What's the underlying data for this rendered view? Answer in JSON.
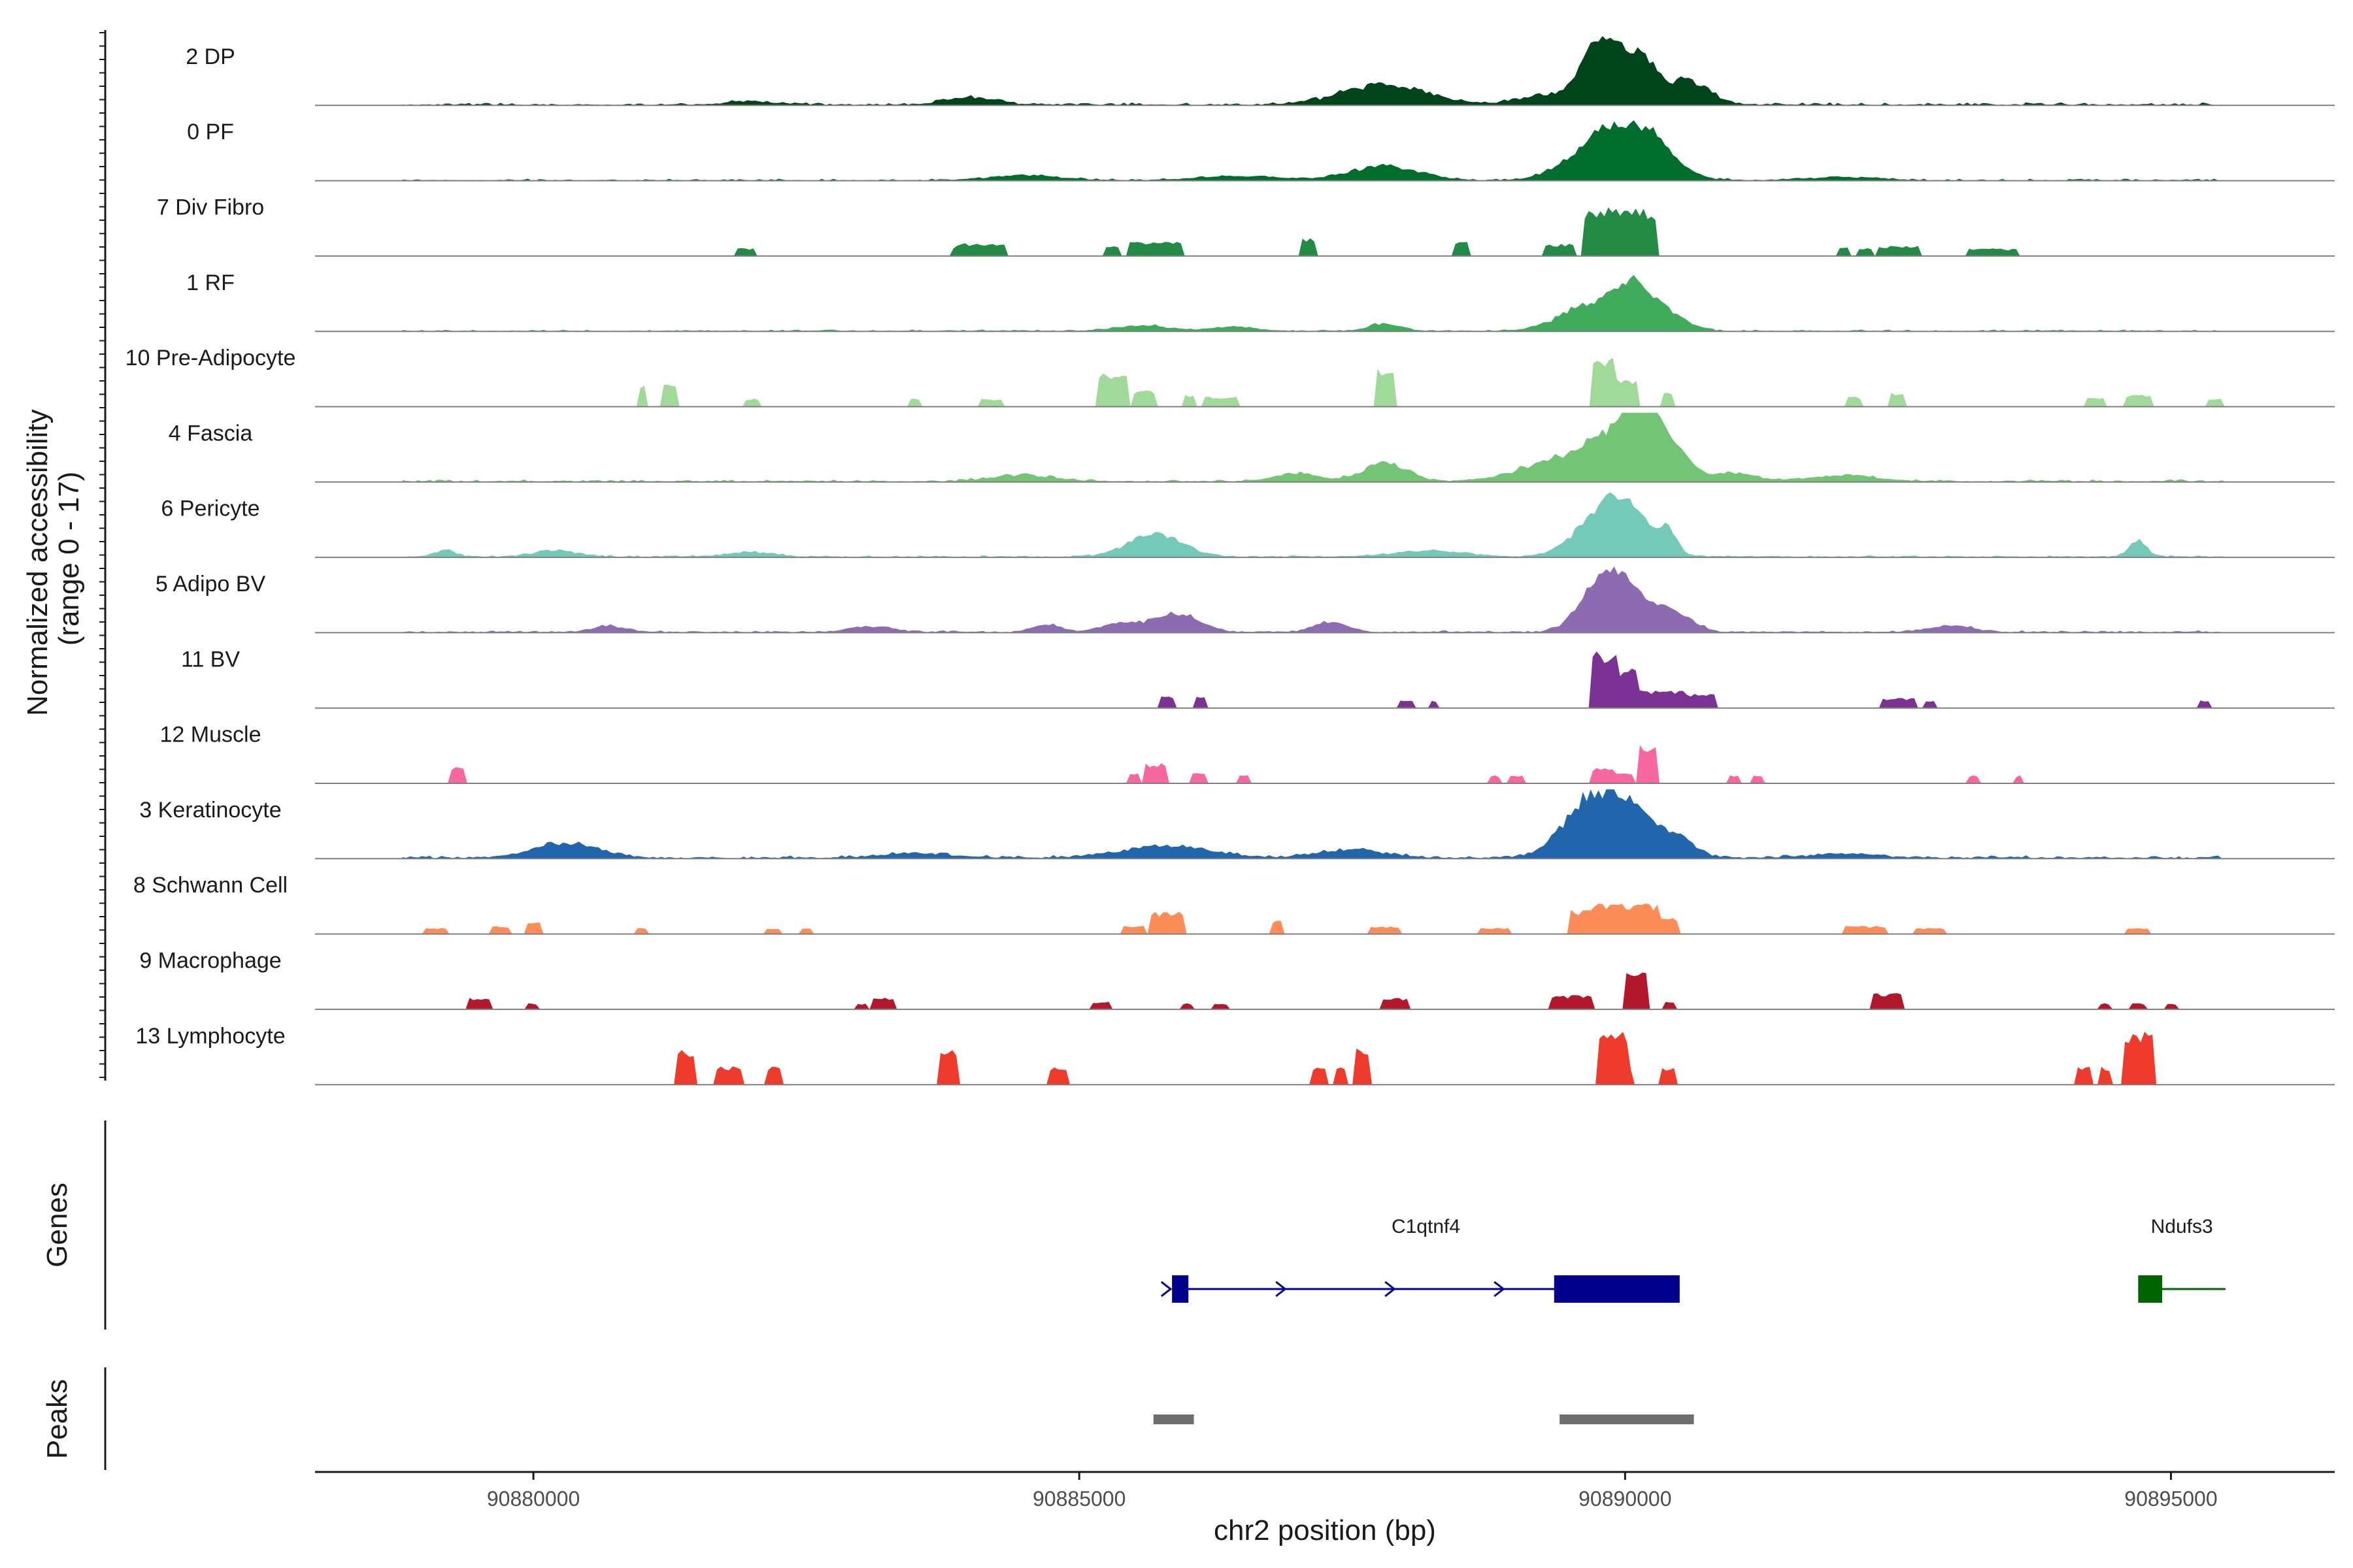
{
  "chart_data": {
    "type": "area",
    "title": "",
    "chromosome": "chr2",
    "xlabel": "chr2 position (bp)",
    "ylabel_line1": "Normalized accessibility",
    "ylabel_line2": "(range 0 - 17)",
    "y_range": [
      0,
      17
    ],
    "xlim": [
      90878000,
      90896500
    ],
    "xticks": [
      90880000,
      90885000,
      90890000,
      90895000
    ],
    "xtick_labels": [
      "90880000",
      "90885000",
      "90890000",
      "90895000"
    ],
    "panel_titles": {
      "genes": "Genes",
      "peaks": "Peaks"
    },
    "tracks": [
      {
        "name": "2 DP",
        "color": "#00441b",
        "base": 0.6,
        "noise": 0.35,
        "range": [
          90878800,
          90895500
        ],
        "peaks": [
          [
            90887800,
            380,
            5.0
          ],
          [
            90884000,
            220,
            1.8
          ],
          [
            90889750,
            150,
            14.5
          ],
          [
            90890100,
            180,
            12.5
          ],
          [
            90890600,
            180,
            5.5
          ],
          [
            90889300,
            250,
            2.5
          ],
          [
            90882000,
            200,
            0.9
          ]
        ]
      },
      {
        "name": "0 PF",
        "color": "#006d2c",
        "base": 0.4,
        "noise": 0.3,
        "range": [
          90878800,
          90895500
        ],
        "peaks": [
          [
            90887800,
            300,
            3.5
          ],
          [
            90884500,
            300,
            1.3
          ],
          [
            90889800,
            300,
            10.0
          ],
          [
            90890200,
            250,
            8.5
          ],
          [
            90886500,
            400,
            1.0
          ],
          [
            90892000,
            300,
            0.8
          ]
        ]
      },
      {
        "name": "7 Div Fibro",
        "color": "#238b45",
        "sparse": true,
        "range": [
          90881800,
          90893800
        ],
        "peaks": [
          [
            90884100,
            250,
            3.2
          ],
          [
            90885700,
            250,
            3.5
          ],
          [
            90887100,
            60,
            4.5
          ],
          [
            90888500,
            60,
            3.8
          ],
          [
            90889400,
            150,
            3.0
          ],
          [
            90889900,
            300,
            12.0
          ],
          [
            90890100,
            200,
            10.0
          ],
          [
            90892500,
            200,
            2.5
          ],
          [
            90893300,
            150,
            2.0
          ],
          [
            90881950,
            80,
            2.0
          ],
          [
            90883900,
            80,
            2.2
          ],
          [
            90885300,
            80,
            2.8
          ],
          [
            90892000,
            60,
            2.5
          ],
          [
            90892200,
            60,
            2.0
          ],
          [
            90893500,
            100,
            1.8
          ]
        ]
      },
      {
        "name": "1 RF",
        "color": "#41ab5d",
        "base": 0.35,
        "noise": 0.3,
        "range": [
          90878800,
          90895500
        ],
        "peaks": [
          [
            90889700,
            280,
            6.5
          ],
          [
            90890100,
            180,
            9.5
          ],
          [
            90890450,
            150,
            3.0
          ],
          [
            90887800,
            150,
            1.8
          ],
          [
            90885600,
            250,
            1.2
          ],
          [
            90886400,
            200,
            0.9
          ]
        ]
      },
      {
        "name": "10 Pre-Adipocyte",
        "color": "#a1d99b",
        "sparse": true,
        "range": [
          90880800,
          90895500
        ],
        "peaks": [
          [
            90881000,
            50,
            5.5
          ],
          [
            90881250,
            60,
            5.5
          ],
          [
            90885300,
            150,
            9.0
          ],
          [
            90885600,
            100,
            4.0
          ],
          [
            90887800,
            100,
            9.5
          ],
          [
            90889800,
            120,
            13.0
          ],
          [
            90890000,
            120,
            7.0
          ],
          [
            90890400,
            60,
            3.5
          ],
          [
            90886000,
            60,
            3.0
          ],
          [
            90886300,
            150,
            2.5
          ],
          [
            90892500,
            80,
            3.5
          ],
          [
            90892100,
            60,
            2.5
          ],
          [
            90894300,
            100,
            2.5
          ],
          [
            90894700,
            120,
            3.0
          ],
          [
            90895400,
            60,
            2.0
          ],
          [
            90883500,
            60,
            2.0
          ],
          [
            90884200,
            120,
            2.0
          ],
          [
            90882000,
            80,
            2.0
          ]
        ]
      },
      {
        "name": "4 Fascia",
        "color": "#74c476",
        "base": 0.5,
        "noise": 0.4,
        "range": [
          90878800,
          90895500
        ],
        "peaks": [
          [
            90889500,
            400,
            6.0
          ],
          [
            90890000,
            250,
            10.0
          ],
          [
            90890150,
            120,
            14.5
          ],
          [
            90890450,
            150,
            7.0
          ],
          [
            90887800,
            200,
            4.5
          ],
          [
            90887000,
            200,
            2.0
          ],
          [
            90891000,
            200,
            2.0
          ],
          [
            90884500,
            300,
            1.5
          ],
          [
            90892000,
            300,
            1.5
          ]
        ]
      },
      {
        "name": "6 Pericyte",
        "color": "#74c9b9",
        "base": 0.3,
        "noise": 0.6,
        "range": [
          90878800,
          90895500
        ],
        "peaks": [
          [
            90885700,
            250,
            5.5
          ],
          [
            90889800,
            250,
            10.0
          ],
          [
            90890050,
            200,
            7.0
          ],
          [
            90890400,
            80,
            5.0
          ],
          [
            90894700,
            80,
            4.0
          ],
          [
            90880200,
            200,
            1.5
          ],
          [
            90879200,
            100,
            1.5
          ],
          [
            90888200,
            300,
            1.5
          ],
          [
            90882000,
            200,
            1.2
          ]
        ]
      },
      {
        "name": "5 Adipo BV",
        "color": "#8c6bb1",
        "base": 0.3,
        "noise": 0.6,
        "range": [
          90878800,
          90895500
        ],
        "peaks": [
          [
            90889800,
            200,
            11.5
          ],
          [
            90890100,
            250,
            7.0
          ],
          [
            90890500,
            150,
            3.0
          ],
          [
            90885900,
            200,
            4.5
          ],
          [
            90885400,
            200,
            2.0
          ],
          [
            90887300,
            150,
            2.5
          ],
          [
            90880700,
            150,
            1.5
          ],
          [
            90883100,
            200,
            1.3
          ],
          [
            90893000,
            200,
            1.5
          ],
          [
            90884700,
            120,
            2.0
          ]
        ]
      },
      {
        "name": "11 BV",
        "color": "#7b3294",
        "sparse": true,
        "range": [
          90885500,
          90895500
        ],
        "peaks": [
          [
            90885800,
            60,
            3.0
          ],
          [
            90886100,
            60,
            3.0
          ],
          [
            90889800,
            120,
            14.0
          ],
          [
            90890000,
            100,
            10.0
          ],
          [
            90890300,
            250,
            4.5
          ],
          [
            90890700,
            150,
            3.5
          ],
          [
            90888000,
            60,
            2.0
          ],
          [
            90888250,
            50,
            2.0
          ],
          [
            90892500,
            150,
            2.5
          ],
          [
            90892800,
            60,
            2.0
          ],
          [
            90895300,
            60,
            2.0
          ]
        ]
      },
      {
        "name": "12 Muscle",
        "color": "#f768a1",
        "sparse": true,
        "range": [
          90879000,
          90894000
        ],
        "peaks": [
          [
            90879300,
            60,
            4.0
          ],
          [
            90885700,
            100,
            5.0
          ],
          [
            90885500,
            60,
            2.5
          ],
          [
            90886100,
            60,
            2.5
          ],
          [
            90886500,
            50,
            2.0
          ],
          [
            90890200,
            100,
            9.5
          ],
          [
            90889800,
            100,
            4.0
          ],
          [
            90890000,
            80,
            2.5
          ],
          [
            90888800,
            60,
            2.0
          ],
          [
            90889000,
            60,
            2.0
          ],
          [
            90891000,
            50,
            2.0
          ],
          [
            90891200,
            50,
            2.0
          ],
          [
            90893200,
            50,
            2.0
          ],
          [
            90893600,
            50,
            2.0
          ]
        ]
      },
      {
        "name": "3 Keratinocyte",
        "color": "#2166ac",
        "base": 0.6,
        "noise": 0.6,
        "range": [
          90878800,
          90895500
        ],
        "peaks": [
          [
            90889700,
            250,
            15.0
          ],
          [
            90890100,
            200,
            9.0
          ],
          [
            90890500,
            150,
            4.5
          ],
          [
            90880300,
            300,
            3.5
          ],
          [
            90885800,
            400,
            3.0
          ],
          [
            90887500,
            300,
            2.0
          ],
          [
            90883500,
            300,
            1.2
          ],
          [
            90892000,
            300,
            1.0
          ]
        ]
      },
      {
        "name": "8 Schwann Cell",
        "color": "#fc8d59",
        "sparse": true,
        "range": [
          90878800,
          90895500
        ],
        "peaks": [
          [
            90879100,
            100,
            1.5
          ],
          [
            90879700,
            100,
            2.0
          ],
          [
            90880000,
            80,
            3.0
          ],
          [
            90885800,
            150,
            5.5
          ],
          [
            90885500,
            100,
            2.0
          ],
          [
            90886800,
            60,
            3.5
          ],
          [
            90889700,
            200,
            6.0
          ],
          [
            90890000,
            300,
            7.5
          ],
          [
            90890400,
            100,
            4.0
          ],
          [
            90887800,
            150,
            2.0
          ],
          [
            90888800,
            150,
            1.5
          ],
          [
            90892200,
            200,
            2.0
          ],
          [
            90892800,
            150,
            1.5
          ],
          [
            90894700,
            100,
            1.5
          ],
          [
            90881000,
            60,
            1.5
          ],
          [
            90882200,
            80,
            1.5
          ],
          [
            90882500,
            60,
            1.5
          ]
        ]
      },
      {
        "name": "9 Macrophage",
        "color": "#b2182b",
        "sparse": true,
        "range": [
          90879200,
          90895200
        ],
        "peaks": [
          [
            90879500,
            120,
            3.0
          ],
          [
            90883200,
            120,
            3.0
          ],
          [
            90885200,
            80,
            2.0
          ],
          [
            90886300,
            60,
            1.5
          ],
          [
            90886000,
            50,
            1.5
          ],
          [
            90887900,
            120,
            2.8
          ],
          [
            90889500,
            200,
            3.5
          ],
          [
            90890100,
            120,
            10.0
          ],
          [
            90890400,
            60,
            2.0
          ],
          [
            90892400,
            150,
            4.0
          ],
          [
            90894400,
            60,
            1.5
          ],
          [
            90894700,
            60,
            1.5
          ],
          [
            90895000,
            60,
            1.5
          ],
          [
            90883000,
            60,
            1.5
          ],
          [
            90880000,
            50,
            1.5
          ]
        ]
      },
      {
        "name": "13 Lymphocyte",
        "color": "#ef3b2c",
        "sparse": true,
        "range": [
          90881000,
          90895000
        ],
        "peaks": [
          [
            90881400,
            80,
            9.0
          ],
          [
            90881800,
            120,
            4.5
          ],
          [
            90882200,
            80,
            4.5
          ],
          [
            90883800,
            80,
            9.0
          ],
          [
            90884800,
            100,
            4.5
          ],
          [
            90887200,
            60,
            4.5
          ],
          [
            90887400,
            60,
            4.5
          ],
          [
            90887600,
            80,
            9.0
          ],
          [
            90889900,
            150,
            13.0
          ],
          [
            90890400,
            80,
            4.5
          ],
          [
            90890000,
            60,
            4.5
          ],
          [
            90894200,
            60,
            4.5
          ],
          [
            90894400,
            60,
            4.5
          ],
          [
            90894700,
            150,
            13.0
          ]
        ]
      }
    ],
    "genes": [
      {
        "name": "C1qtnf4",
        "color": "#00008b",
        "strand": "+",
        "start": 90885850,
        "end": 90890500,
        "exons": [
          [
            90885850,
            90886000
          ],
          [
            90889350,
            90890500
          ]
        ],
        "arrows": [
          90885800,
          90886850,
          90887850,
          90888850
        ]
      },
      {
        "name": "Ndufs3",
        "color": "#006400",
        "strand": "+",
        "start": 90894700,
        "end": 90895500,
        "exons": [
          [
            90894700,
            90894920
          ]
        ],
        "arrows": []
      }
    ],
    "peak_regions": [
      {
        "start": 90885680,
        "end": 90886050,
        "color": "#6e6e6e"
      },
      {
        "start": 90889400,
        "end": 90890630,
        "color": "#6e6e6e"
      }
    ]
  }
}
